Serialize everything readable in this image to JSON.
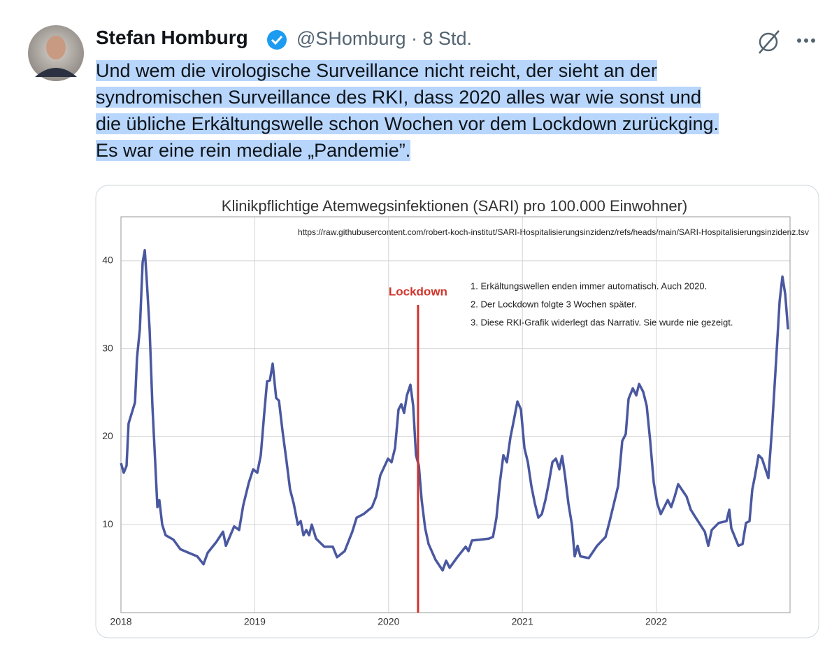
{
  "tweet": {
    "name": "Stefan Homburg",
    "meta": "@SHomburg · 8 Std.",
    "text_lines": [
      "Und wem die virologische Surveillance nicht reicht, der sieht an der",
      "syndromischen Surveillance des RKI, dass 2020 alles war wie sonst und",
      "die übliche Erkältungswelle schon Wochen vor dem Lockdown zurückging.",
      "Es war eine rein mediale „Pandemie”."
    ]
  },
  "chart_data": {
    "type": "line",
    "title": "Klinikpflichtige Atemwegsinfektionen (SARI) pro 100.000 Einwohner)",
    "source": "https://raw.githubusercontent.com/robert-koch-institut/SARI-Hospitalisierungsinzidenz/refs/heads/main/SARI-Hospitalisierungsinzidenz.tsv",
    "notes": [
      "1. Erkältungswellen enden immer automatisch. Auch 2020.",
      "2. Der Lockdown folgte 3 Wochen später.",
      "3. Diese RKI-Grafik widerlegt das Narrativ. Sie wurde nie gezeigt."
    ],
    "annotations": [
      {
        "label": "Lockdown",
        "x": 2020.22,
        "color": "#d0342c"
      }
    ],
    "color": "#4a58a0",
    "x": [
      2018.0,
      2018.021,
      2018.042,
      2018.057,
      2018.105,
      2018.12,
      2018.141,
      2018.162,
      2018.178,
      2018.193,
      2018.214,
      2018.235,
      2018.256,
      2018.272,
      2018.287,
      2018.308,
      2018.334,
      2018.392,
      2018.444,
      2018.507,
      2018.57,
      2018.617,
      2018.648,
      2018.711,
      2018.763,
      2018.784,
      2018.846,
      2018.883,
      2018.914,
      2018.956,
      2018.988,
      2019.019,
      2019.045,
      2019.071,
      2019.092,
      2019.113,
      2019.134,
      2019.16,
      2019.181,
      2019.207,
      2019.238,
      2019.264,
      2019.291,
      2019.322,
      2019.343,
      2019.364,
      2019.385,
      2019.406,
      2019.426,
      2019.458,
      2019.52,
      2019.583,
      2019.615,
      2019.672,
      2019.729,
      2019.761,
      2019.813,
      2019.876,
      2019.907,
      2019.938,
      2019.996,
      2020.022,
      2020.048,
      2020.074,
      2020.095,
      2020.116,
      2020.137,
      2020.163,
      2020.184,
      2020.205,
      2020.226,
      2020.247,
      2020.273,
      2020.299,
      2020.351,
      2020.404,
      2020.43,
      2020.456,
      2020.513,
      2020.576,
      2020.597,
      2020.623,
      2020.686,
      2020.748,
      2020.78,
      2020.806,
      2020.832,
      2020.858,
      2020.884,
      2020.91,
      2020.936,
      2020.963,
      2020.989,
      2021.015,
      2021.041,
      2021.067,
      2021.093,
      2021.119,
      2021.145,
      2021.172,
      2021.198,
      2021.224,
      2021.25,
      2021.276,
      2021.297,
      2021.318,
      2021.344,
      2021.37,
      2021.391,
      2021.412,
      2021.433,
      2021.496,
      2021.558,
      2021.621,
      2021.652,
      2021.684,
      2021.715,
      2021.746,
      2021.772,
      2021.793,
      2021.825,
      2021.851,
      2021.872,
      2021.903,
      2021.929,
      2021.955,
      2021.981,
      2022.008,
      2022.034,
      2022.086,
      2022.112,
      2022.138,
      2022.164,
      2022.227,
      2022.258,
      2022.295,
      2022.363,
      2022.389,
      2022.415,
      2022.467,
      2022.525,
      2022.546,
      2022.561,
      2022.614,
      2022.645,
      2022.671,
      2022.697,
      2022.718,
      2022.739,
      2022.765,
      2022.791,
      2022.838,
      2022.864,
      2022.896,
      2022.922,
      2022.943,
      2022.964,
      2022.985
    ],
    "values": [
      17.0,
      15.9,
      16.7,
      21.5,
      23.9,
      29.0,
      32.2,
      39.8,
      41.2,
      37.8,
      32.2,
      23.5,
      17.1,
      12.0,
      12.8,
      10.0,
      8.8,
      8.3,
      7.2,
      6.8,
      6.4,
      5.5,
      6.8,
      8.0,
      9.2,
      7.6,
      9.8,
      9.4,
      12.2,
      14.8,
      16.3,
      15.9,
      17.9,
      22.7,
      26.3,
      26.4,
      28.3,
      24.4,
      24.1,
      20.7,
      17.1,
      14.0,
      12.4,
      10.0,
      10.4,
      8.8,
      9.4,
      8.8,
      10.0,
      8.4,
      7.5,
      7.5,
      6.3,
      7.0,
      9.2,
      10.8,
      11.2,
      12.0,
      13.2,
      15.6,
      17.5,
      17.1,
      18.7,
      23.1,
      23.7,
      22.7,
      24.7,
      25.9,
      23.5,
      17.9,
      16.7,
      12.8,
      9.6,
      7.8,
      6.0,
      4.8,
      5.9,
      5.1,
      6.3,
      7.5,
      7.0,
      8.2,
      8.3,
      8.4,
      8.6,
      10.8,
      14.8,
      17.9,
      17.1,
      19.9,
      21.9,
      24.0,
      23.1,
      18.7,
      17.1,
      14.4,
      12.4,
      10.8,
      11.2,
      12.8,
      14.8,
      17.1,
      17.5,
      16.3,
      17.8,
      15.6,
      12.4,
      10.0,
      6.4,
      7.6,
      6.4,
      6.2,
      7.6,
      8.6,
      10.4,
      12.4,
      14.4,
      19.5,
      20.3,
      24.3,
      25.5,
      24.7,
      26.0,
      25.1,
      23.5,
      19.5,
      14.8,
      12.4,
      11.2,
      12.8,
      12.0,
      13.2,
      14.6,
      13.2,
      11.7,
      10.8,
      9.2,
      7.6,
      9.4,
      10.2,
      10.4,
      11.7,
      9.6,
      7.6,
      7.8,
      10.2,
      10.4,
      14.0,
      15.6,
      17.9,
      17.5,
      15.3,
      20.7,
      28.7,
      35.4,
      38.2,
      36.2,
      32.2
    ],
    "xlim": [
      2018,
      2023
    ],
    "xticks": [
      2018,
      2019,
      2020,
      2021,
      2022
    ],
    "ylim": [
      0,
      45
    ],
    "yticks": [
      10,
      20,
      30,
      40
    ],
    "grid": true
  }
}
